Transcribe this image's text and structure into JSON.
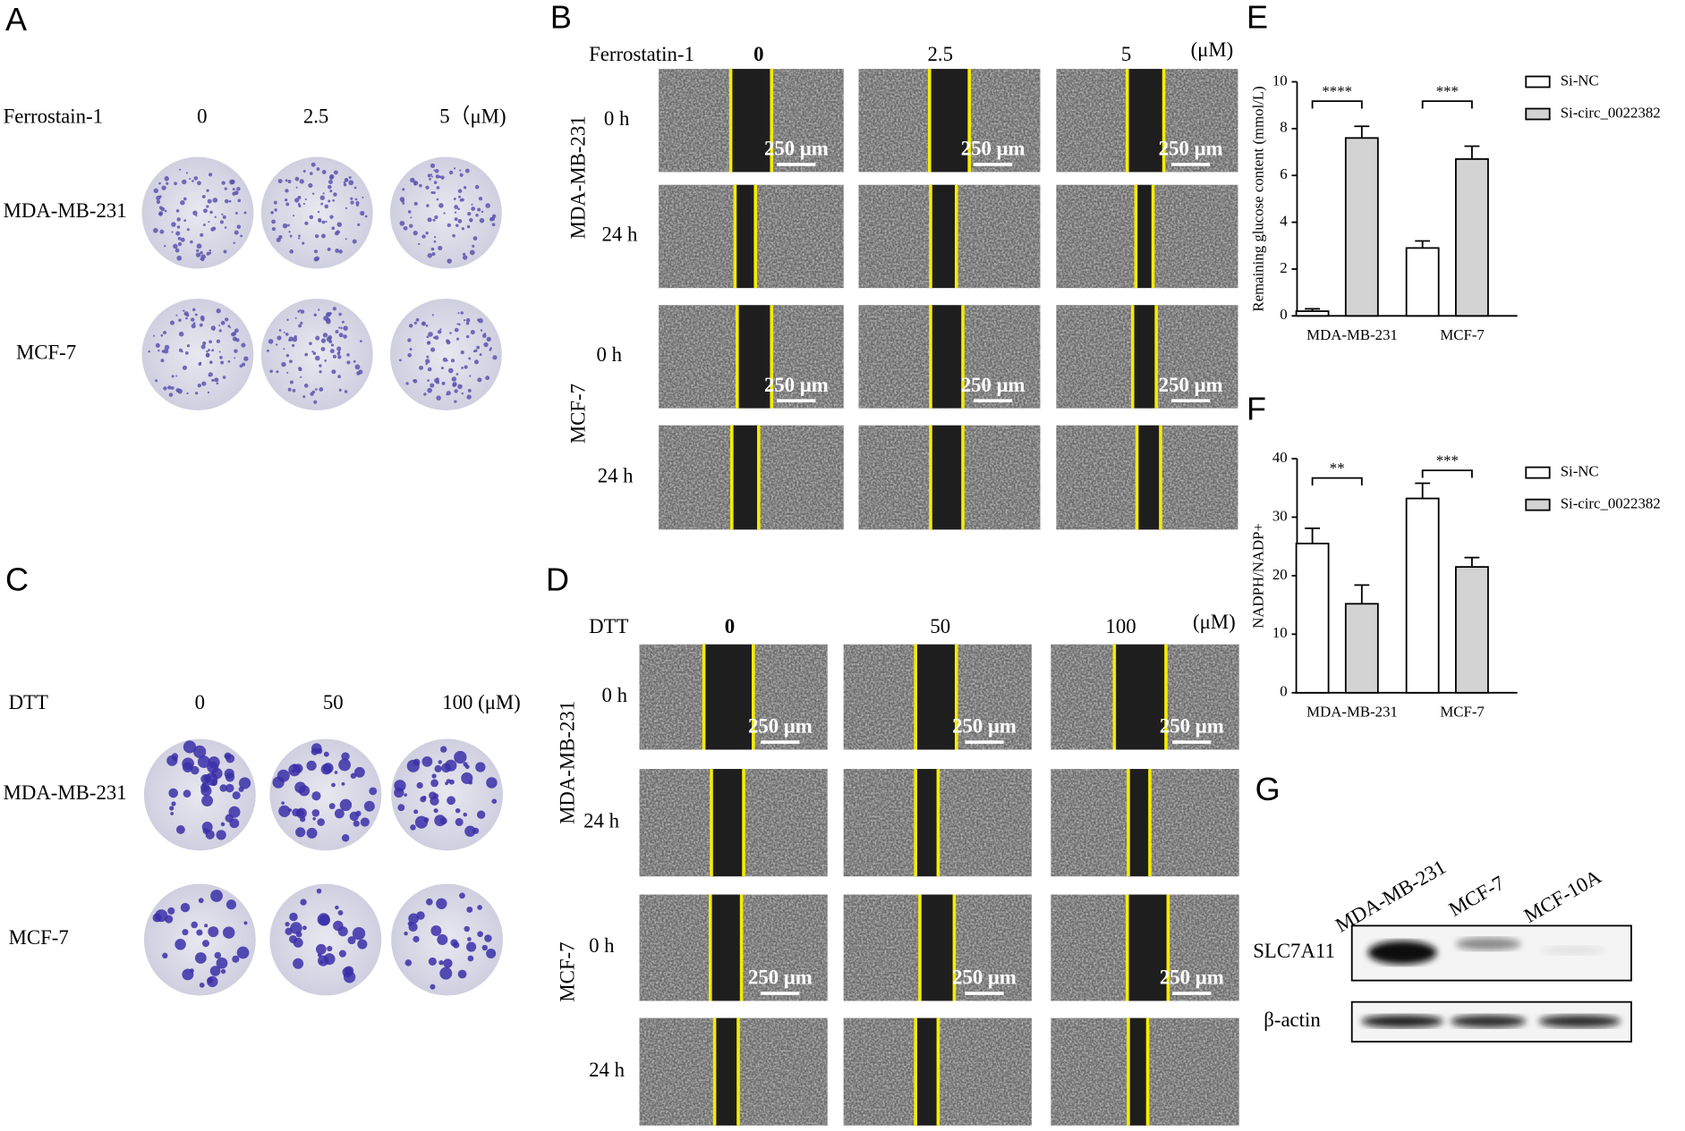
{
  "panel_a": {
    "label": "A",
    "treatment": "Ferrostain-1",
    "doses": [
      "0",
      "2.5",
      "5（μM)"
    ],
    "cell_lines": [
      "MDA-MB-231",
      "MCF-7"
    ]
  },
  "panel_b": {
    "label": "B",
    "treatment": "Ferrostatin-1",
    "doses": [
      "0",
      "2.5",
      "5"
    ],
    "unit": "(μM)",
    "cell_lines": [
      "MDA-MB-231",
      "MCF-7"
    ],
    "times": [
      "0 h",
      "24 h"
    ],
    "scale_bar": "250 μm"
  },
  "panel_c": {
    "label": "C",
    "treatment": "DTT",
    "doses": [
      "0",
      "50",
      "100 (μM)"
    ],
    "cell_lines": [
      "MDA-MB-231",
      "MCF-7"
    ]
  },
  "panel_d": {
    "label": "D",
    "treatment": "DTT",
    "doses": [
      "0",
      "50",
      "100"
    ],
    "unit": "(μM)",
    "cell_lines": [
      "MDA-MB-231",
      "MCF-7"
    ],
    "times": [
      "0 h",
      "24 h"
    ],
    "scale_bar": "250 μm"
  },
  "chart_data": [
    {
      "type": "bar",
      "label": "E",
      "y_label": "Remaining glucose content (mmol/L)",
      "categories": [
        "MDA-MB-231",
        "MCF-7"
      ],
      "series": [
        {
          "name": "Si-NC",
          "color": "#ffffff",
          "values": [
            0.2,
            2.9
          ],
          "errors": [
            0.1,
            0.3
          ]
        },
        {
          "name": "Si-circ_0022382",
          "color": "#d3d3d3",
          "values": [
            7.6,
            6.7
          ],
          "errors": [
            0.5,
            0.55
          ]
        }
      ],
      "significance": [
        "****",
        "***"
      ],
      "ylim": [
        0,
        10
      ],
      "yticks": [
        0,
        2,
        4,
        6,
        8,
        10
      ]
    },
    {
      "type": "bar",
      "label": "F",
      "y_label": "NADPH/NADP+",
      "categories": [
        "MDA-MB-231",
        "MCF-7"
      ],
      "series": [
        {
          "name": "Si-NC",
          "color": "#ffffff",
          "values": [
            25.5,
            33.2
          ],
          "errors": [
            2.6,
            2.6
          ]
        },
        {
          "name": "Si-circ_0022382",
          "color": "#d3d3d3",
          "values": [
            15.2,
            21.5
          ],
          "errors": [
            3.2,
            1.6
          ]
        }
      ],
      "significance": [
        "**",
        "***"
      ],
      "ylim": [
        0,
        40
      ],
      "yticks": [
        0,
        10,
        20,
        30,
        40
      ]
    }
  ],
  "panel_g": {
    "label": "G",
    "lanes": [
      "MDA-MB-231",
      "MCF-7",
      "MCF-10A"
    ],
    "proteins": [
      "SLC7A11",
      "β-actin"
    ]
  }
}
